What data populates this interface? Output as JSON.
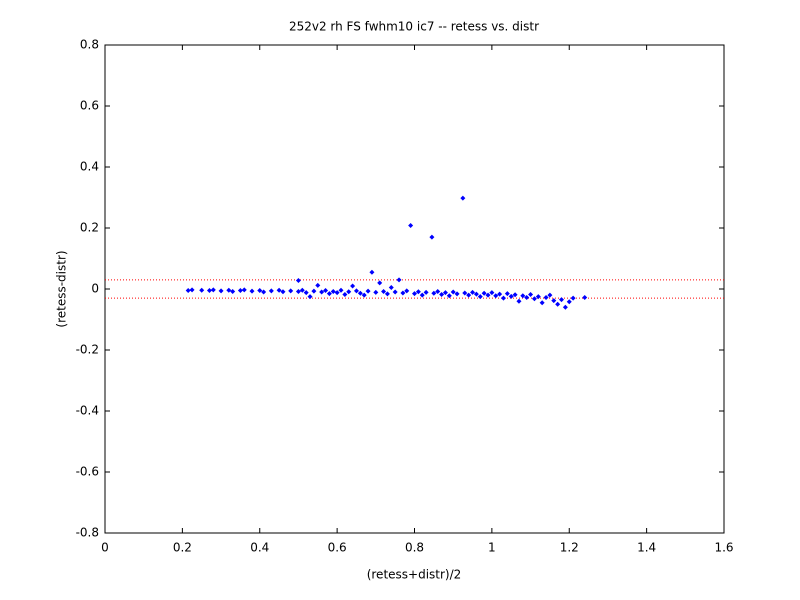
{
  "chart_data": {
    "type": "scatter",
    "title": "252v2 rh FS fwhm10 ic7 -- retess vs. distr",
    "x_label": "(retess+distr)/2",
    "y_label": "(retess-distr)",
    "xlim": [
      0,
      1.6
    ],
    "xticks": [
      0,
      0.2,
      0.4,
      0.6,
      0.8,
      1,
      1.2,
      1.4,
      1.6
    ],
    "ylim": [
      -0.8,
      0.8
    ],
    "yticks": [
      -0.8,
      -0.6,
      -0.4,
      -0.2,
      0,
      0.2,
      0.4,
      0.6,
      0.8
    ],
    "grid": false,
    "reference_lines": [
      0.03,
      -0.03
    ],
    "reference_line_color": "#ff0000",
    "series": [
      {
        "color": "#0000ff",
        "x": [
          0.215,
          0.225,
          0.25,
          0.27,
          0.28,
          0.3,
          0.32,
          0.33,
          0.35,
          0.36,
          0.38,
          0.4,
          0.41,
          0.43,
          0.45,
          0.46,
          0.48,
          0.5,
          0.5,
          0.51,
          0.52,
          0.53,
          0.54,
          0.55,
          0.56,
          0.57,
          0.58,
          0.59,
          0.6,
          0.61,
          0.62,
          0.63,
          0.64,
          0.65,
          0.66,
          0.67,
          0.68,
          0.69,
          0.7,
          0.71,
          0.72,
          0.73,
          0.74,
          0.75,
          0.76,
          0.77,
          0.78,
          0.79,
          0.8,
          0.81,
          0.82,
          0.83,
          0.845,
          0.85,
          0.86,
          0.87,
          0.88,
          0.89,
          0.9,
          0.91,
          0.925,
          0.93,
          0.94,
          0.95,
          0.96,
          0.97,
          0.98,
          0.99,
          1.0,
          1.01,
          1.02,
          1.03,
          1.04,
          1.05,
          1.06,
          1.07,
          1.08,
          1.09,
          1.1,
          1.11,
          1.12,
          1.13,
          1.14,
          1.15,
          1.16,
          1.17,
          1.18,
          1.19,
          1.2,
          1.21,
          1.24
        ],
        "values": [
          -0.005,
          -0.003,
          -0.004,
          -0.005,
          -0.003,
          -0.006,
          -0.004,
          -0.008,
          -0.005,
          -0.003,
          -0.007,
          -0.005,
          -0.01,
          -0.006,
          -0.004,
          -0.009,
          -0.006,
          0.028,
          -0.008,
          -0.004,
          -0.012,
          -0.025,
          -0.007,
          0.012,
          -0.01,
          -0.005,
          -0.015,
          -0.008,
          -0.012,
          -0.004,
          -0.018,
          -0.009,
          0.01,
          -0.006,
          -0.014,
          -0.02,
          -0.007,
          0.055,
          -0.011,
          0.02,
          -0.008,
          -0.016,
          0.005,
          -0.01,
          0.03,
          -0.013,
          -0.006,
          0.208,
          -0.015,
          -0.009,
          -0.02,
          -0.011,
          0.17,
          -0.014,
          -0.008,
          -0.018,
          -0.012,
          -0.022,
          -0.01,
          -0.016,
          0.298,
          -0.013,
          -0.02,
          -0.011,
          -0.017,
          -0.025,
          -0.014,
          -0.02,
          -0.012,
          -0.022,
          -0.017,
          -0.03,
          -0.015,
          -0.024,
          -0.019,
          -0.04,
          -0.022,
          -0.028,
          -0.018,
          -0.032,
          -0.025,
          -0.045,
          -0.028,
          -0.02,
          -0.038,
          -0.05,
          -0.035,
          -0.06,
          -0.042,
          -0.03,
          -0.028
        ]
      }
    ]
  }
}
